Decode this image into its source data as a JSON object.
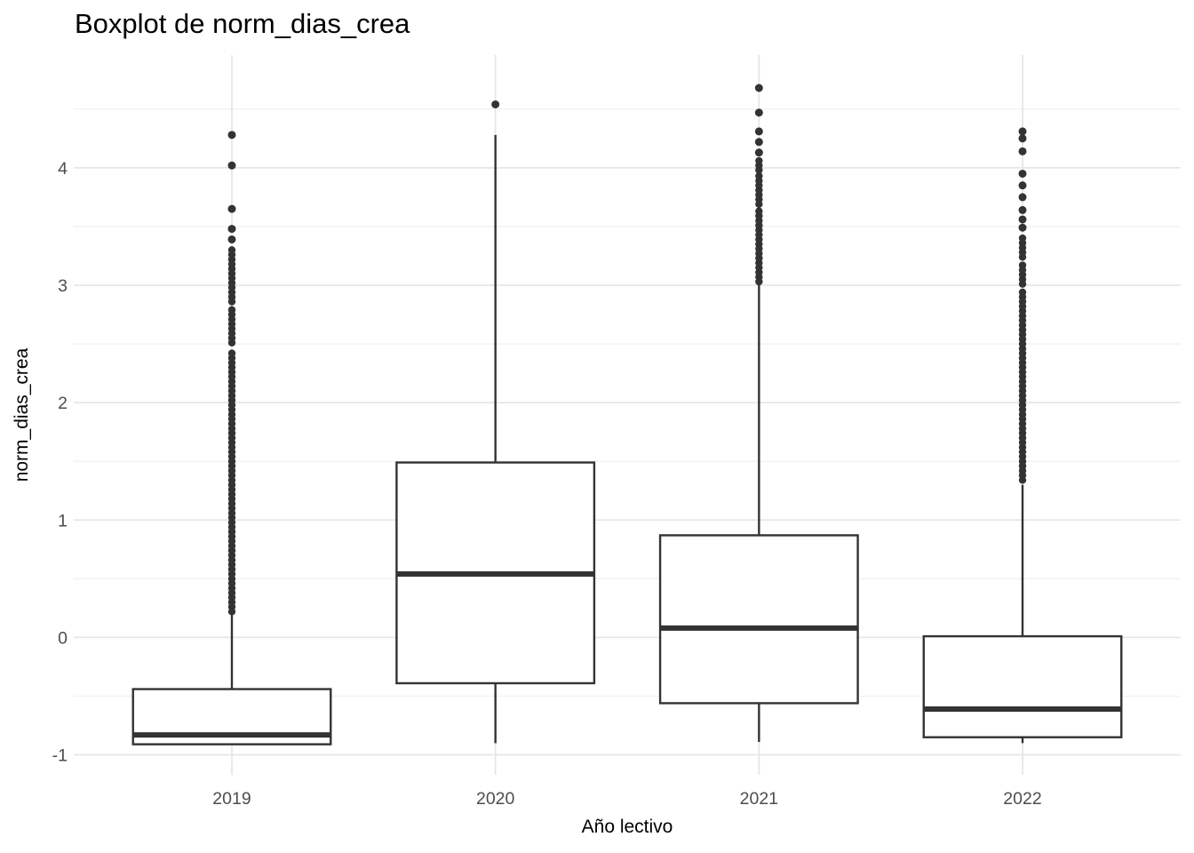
{
  "chart_data": {
    "type": "boxplot",
    "title": "Boxplot de norm_dias_crea",
    "xlabel": "Año lectivo",
    "ylabel": "norm_dias_crea",
    "categories": [
      "2019",
      "2020",
      "2021",
      "2022"
    ],
    "y_ticks": [
      -1,
      0,
      1,
      2,
      3,
      4
    ],
    "y_minor_ticks": [
      -0.5,
      0.5,
      1.5,
      2.5,
      3.5,
      4.5
    ],
    "ylim": [
      -1.17,
      4.96
    ],
    "grid": "major-and-minor, light grey on white (ggplot theme_minimal style)",
    "legend_position": "none",
    "series": [
      {
        "category": "2019",
        "whisker_low": -0.91,
        "q1": -0.91,
        "median": -0.83,
        "q3": -0.44,
        "whisker_high": 0.22,
        "outliers_dense_ranges": [
          [
            0.22,
            2.45
          ],
          [
            2.51,
            2.8
          ],
          [
            2.86,
            3.1
          ],
          [
            3.14,
            3.3
          ]
        ],
        "outliers": [
          3.39,
          3.48,
          3.65,
          4.02,
          4.28
        ]
      },
      {
        "category": "2020",
        "whisker_low": -0.9,
        "q1": -0.39,
        "median": 0.54,
        "q3": 1.49,
        "whisker_high": 4.28,
        "outliers_dense_ranges": [],
        "outliers": [
          4.54
        ]
      },
      {
        "category": "2021",
        "whisker_low": -0.89,
        "q1": -0.56,
        "median": 0.08,
        "q3": 0.87,
        "whisker_high": 3.02,
        "outliers_dense_ranges": [
          [
            3.03,
            3.63
          ],
          [
            3.69,
            3.93
          ],
          [
            3.98,
            4.07
          ]
        ],
        "outliers": [
          4.13,
          4.22,
          4.31,
          4.47,
          4.68
        ]
      },
      {
        "category": "2022",
        "whisker_low": -0.9,
        "q1": -0.85,
        "median": -0.61,
        "q3": 0.01,
        "whisker_high": 1.3,
        "outliers_dense_ranges": [
          [
            1.34,
            2.95
          ],
          [
            3.01,
            3.19
          ],
          [
            3.24,
            3.41
          ]
        ],
        "outliers": [
          3.49,
          3.56,
          3.64,
          3.75,
          3.85,
          3.95,
          4.14,
          4.25,
          4.31
        ]
      }
    ],
    "colors": {
      "background": "#FFFFFF",
      "box_fill": "#FFFFFF",
      "box_stroke": "#333333",
      "median_stroke": "#333333",
      "whisker_stroke": "#333333",
      "outlier_fill": "#333333",
      "grid_major": "#E6E6E6",
      "grid_minor": "#F1F1F1",
      "tick_label": "#4D4D4D",
      "title_color": "#000000",
      "axis_title_color": "#000000"
    }
  }
}
